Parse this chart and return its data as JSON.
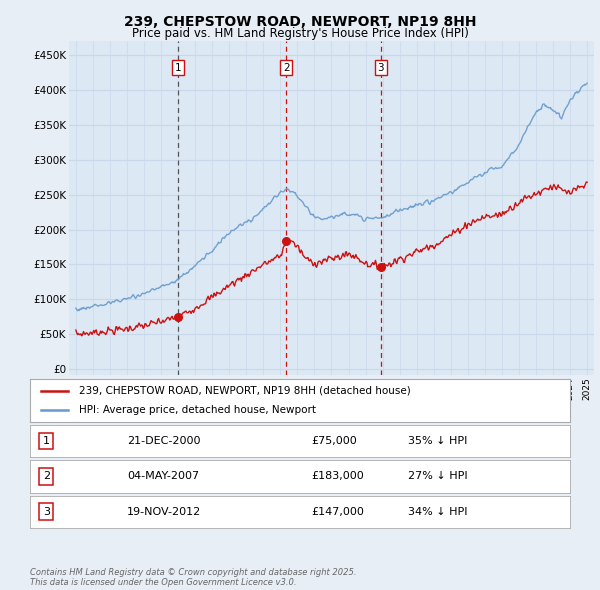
{
  "title": "239, CHEPSTOW ROAD, NEWPORT, NP19 8HH",
  "subtitle": "Price paid vs. HM Land Registry's House Price Index (HPI)",
  "background_color": "#e8eef5",
  "plot_bg_color": "#dce8f4",
  "grid_color": "#c8d8ea",
  "hpi_color": "#6699cc",
  "price_color": "#cc1111",
  "yticks": [
    0,
    50000,
    100000,
    150000,
    200000,
    250000,
    300000,
    350000,
    400000,
    450000
  ],
  "ylim": [
    -8000,
    470000
  ],
  "xlim_left": 1994.6,
  "xlim_right": 2025.4,
  "t1_x": 2001.0,
  "t1_price": 75000,
  "t2_x": 2007.35,
  "t2_price": 183000,
  "t3_x": 2012.89,
  "t3_price": 147000,
  "legend_red": "239, CHEPSTOW ROAD, NEWPORT, NP19 8HH (detached house)",
  "legend_blue": "HPI: Average price, detached house, Newport",
  "footnote": "Contains HM Land Registry data © Crown copyright and database right 2025.\nThis data is licensed under the Open Government Licence v3.0.",
  "table": [
    {
      "num": "1",
      "date": "21-DEC-2000",
      "price": "£75,000",
      "hpi": "35% ↓ HPI"
    },
    {
      "num": "2",
      "date": "04-MAY-2007",
      "price": "£183,000",
      "hpi": "27% ↓ HPI"
    },
    {
      "num": "3",
      "date": "19-NOV-2012",
      "price": "£147,000",
      "hpi": "34% ↓ HPI"
    }
  ]
}
